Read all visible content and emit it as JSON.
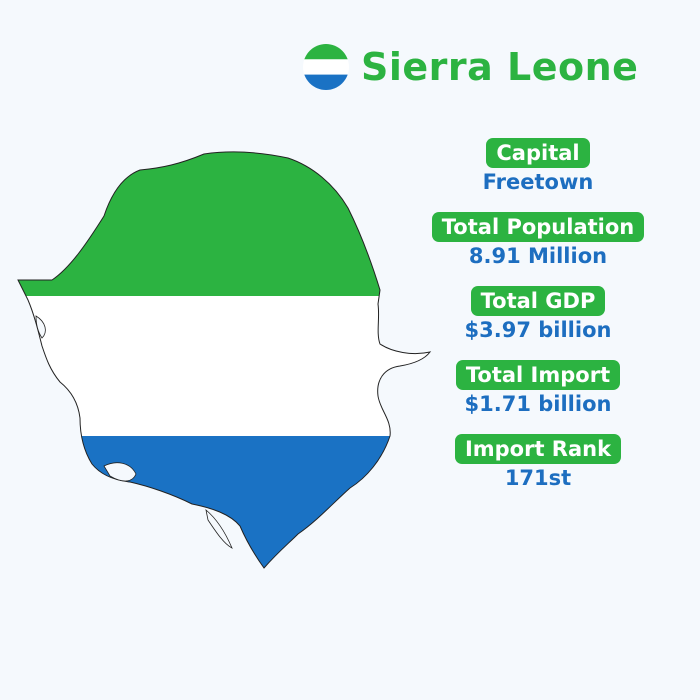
{
  "header": {
    "title": "Sierra Leone",
    "flag_icon": "sierra-leone-flag-icon"
  },
  "colors": {
    "green": "#2cb341",
    "white": "#ffffff",
    "blue": "#1a72c4",
    "value_text": "#1d6ec0",
    "background": "#f5f9fd"
  },
  "map": {
    "icon": "sierra-leone-flag-map-icon"
  },
  "stats": [
    {
      "label": "Capital",
      "value": "Freetown"
    },
    {
      "label": "Total Population",
      "value": "8.91 Million"
    },
    {
      "label": "Total GDP",
      "value": "$3.97 billion"
    },
    {
      "label": "Total Import",
      "value": "$1.71 billion"
    },
    {
      "label": "Import Rank",
      "value": "171st"
    }
  ]
}
